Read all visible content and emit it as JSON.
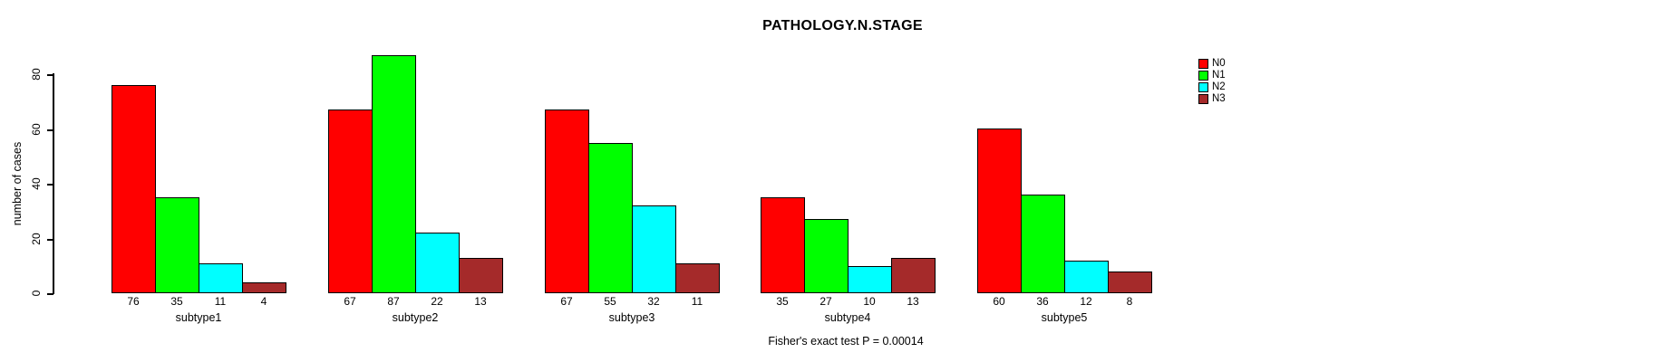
{
  "title": "PATHOLOGY.N.STAGE",
  "footer": "Fisher's exact test P = 0.00014",
  "y_axis": {
    "label": "number of cases"
  },
  "legend_items": [
    "N0",
    "N1",
    "N2",
    "N3"
  ],
  "colors": {
    "N0": "#ff0000",
    "N1": "#00ff00",
    "N2": "#00ffff",
    "N3": "#a52a2a",
    "axis": "#000000",
    "background": "#ffffff"
  },
  "chart_data": {
    "type": "bar",
    "title": "PATHOLOGY.N.STAGE",
    "categories": [
      "subtype1",
      "subtype2",
      "subtype3",
      "subtype4",
      "subtype5"
    ],
    "series": [
      {
        "name": "N0",
        "color": "#ff0000",
        "values": [
          76,
          67,
          67,
          35,
          60
        ]
      },
      {
        "name": "N1",
        "color": "#00ff00",
        "values": [
          35,
          87,
          55,
          27,
          36
        ]
      },
      {
        "name": "N2",
        "color": "#00ffff",
        "values": [
          11,
          22,
          32,
          10,
          12
        ]
      },
      {
        "name": "N3",
        "color": "#a52a2a",
        "values": [
          4,
          13,
          11,
          13,
          8
        ]
      }
    ],
    "xlabel": "",
    "ylabel": "number of cases",
    "ylim": [
      0,
      80
    ],
    "yticks": [
      0,
      20,
      40,
      60,
      80
    ],
    "grid": false,
    "legend_position": "right",
    "bar_value_labels": true,
    "annotation": "Fisher's exact test P = 0.00014"
  }
}
